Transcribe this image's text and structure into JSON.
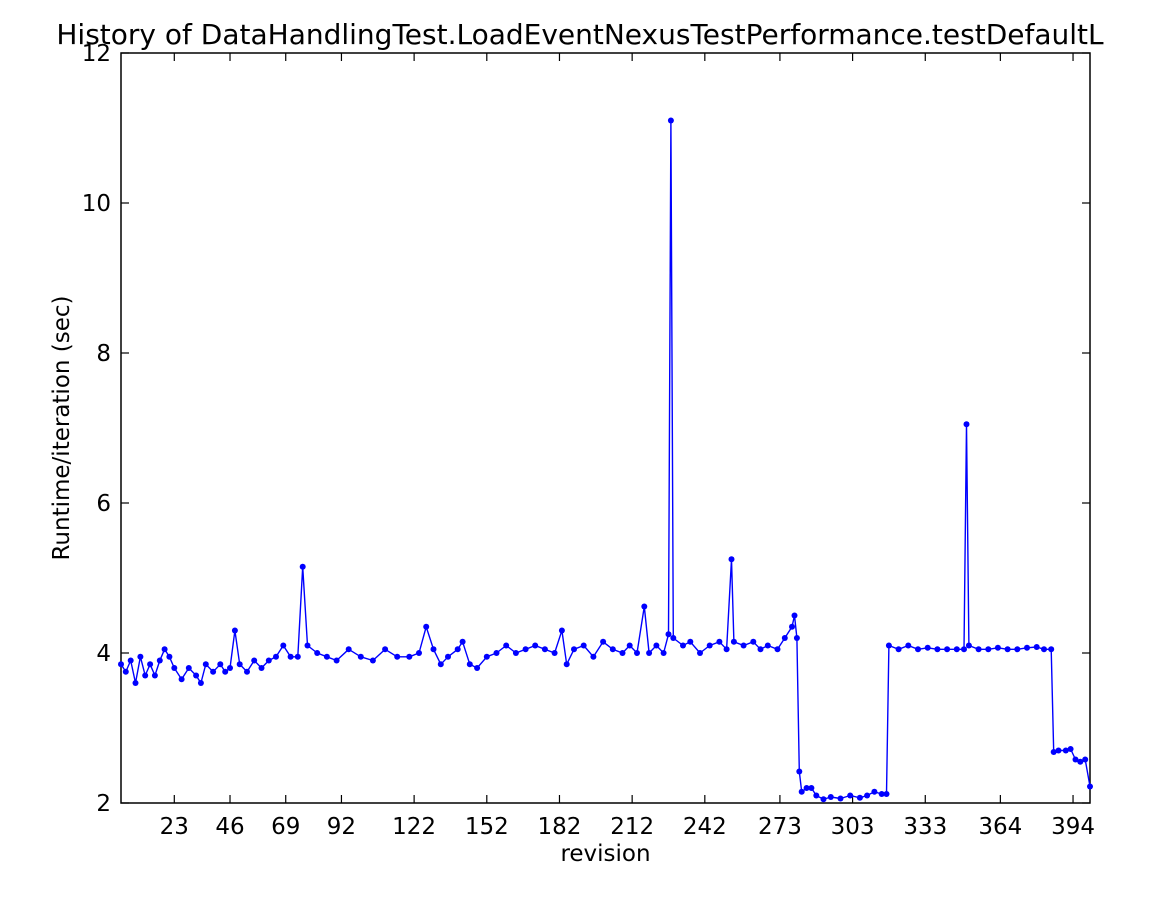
{
  "chart_data": {
    "type": "line",
    "title": "History of DataHandlingTest.LoadEventNexusTestPerformance.testDefaultL",
    "xlabel": "revision",
    "ylabel": "Runtime/iteration (sec)",
    "xlim": [
      1,
      401
    ],
    "ylim": [
      2,
      12
    ],
    "xticks": [
      23,
      46,
      69,
      92,
      122,
      152,
      182,
      212,
      242,
      273,
      303,
      333,
      364,
      394
    ],
    "xtick_labels": [
      "23",
      "46",
      "69",
      "92",
      "122",
      "152",
      "182",
      "212",
      "242",
      "273",
      "303",
      "333",
      "364",
      "394"
    ],
    "yticks": [
      2,
      4,
      6,
      8,
      10,
      12
    ],
    "ytick_labels": [
      "2",
      "4",
      "6",
      "8",
      "10",
      "12"
    ],
    "grid": false,
    "colors": {
      "series": "#0000ff",
      "axes": "#000000",
      "background": "#ffffff"
    },
    "series": [
      {
        "marker": "circle",
        "keypoints": [
          [
            1,
            3.85
          ],
          [
            3,
            3.75
          ],
          [
            5,
            3.9
          ],
          [
            7,
            3.6
          ],
          [
            9,
            3.95
          ],
          [
            11,
            3.7
          ],
          [
            13,
            3.85
          ],
          [
            15,
            3.7
          ],
          [
            17,
            3.9
          ],
          [
            19,
            4.05
          ],
          [
            21,
            3.95
          ],
          [
            23,
            3.8
          ],
          [
            26,
            3.65
          ],
          [
            29,
            3.8
          ],
          [
            32,
            3.7
          ],
          [
            34,
            3.6
          ],
          [
            36,
            3.85
          ],
          [
            39,
            3.75
          ],
          [
            42,
            3.85
          ],
          [
            44,
            3.75
          ],
          [
            46,
            3.8
          ],
          [
            48,
            4.3
          ],
          [
            50,
            3.85
          ],
          [
            53,
            3.75
          ],
          [
            56,
            3.9
          ],
          [
            59,
            3.8
          ],
          [
            62,
            3.9
          ],
          [
            65,
            3.95
          ],
          [
            68,
            4.1
          ],
          [
            71,
            3.95
          ],
          [
            74,
            3.95
          ],
          [
            76,
            5.15
          ],
          [
            78,
            4.1
          ],
          [
            82,
            4.0
          ],
          [
            86,
            3.95
          ],
          [
            90,
            3.9
          ],
          [
            95,
            4.05
          ],
          [
            100,
            3.95
          ],
          [
            105,
            3.9
          ],
          [
            110,
            4.05
          ],
          [
            115,
            3.95
          ],
          [
            120,
            3.95
          ],
          [
            124,
            4.0
          ],
          [
            127,
            4.35
          ],
          [
            130,
            4.05
          ],
          [
            133,
            3.85
          ],
          [
            136,
            3.95
          ],
          [
            140,
            4.05
          ],
          [
            142,
            4.15
          ],
          [
            145,
            3.85
          ],
          [
            148,
            3.8
          ],
          [
            152,
            3.95
          ],
          [
            156,
            4.0
          ],
          [
            160,
            4.1
          ],
          [
            164,
            4.0
          ],
          [
            168,
            4.05
          ],
          [
            172,
            4.1
          ],
          [
            176,
            4.05
          ],
          [
            180,
            4.0
          ],
          [
            183,
            4.3
          ],
          [
            185,
            3.85
          ],
          [
            188,
            4.05
          ],
          [
            192,
            4.1
          ],
          [
            196,
            3.95
          ],
          [
            200,
            4.15
          ],
          [
            204,
            4.05
          ],
          [
            208,
            4.0
          ],
          [
            211,
            4.1
          ],
          [
            214,
            4.0
          ],
          [
            217,
            4.62
          ],
          [
            219,
            4.0
          ],
          [
            222,
            4.1
          ],
          [
            225,
            4.0
          ],
          [
            227,
            4.25
          ],
          [
            228,
            11.1
          ],
          [
            229,
            4.2
          ],
          [
            233,
            4.1
          ],
          [
            236,
            4.15
          ],
          [
            240,
            4.0
          ],
          [
            244,
            4.1
          ],
          [
            248,
            4.15
          ],
          [
            251,
            4.05
          ],
          [
            253,
            5.25
          ],
          [
            254,
            4.15
          ],
          [
            258,
            4.1
          ],
          [
            262,
            4.15
          ],
          [
            265,
            4.05
          ],
          [
            268,
            4.1
          ],
          [
            272,
            4.05
          ],
          [
            275,
            4.2
          ],
          [
            278,
            4.35
          ],
          [
            279,
            4.5
          ],
          [
            280,
            4.2
          ],
          [
            281,
            2.42
          ],
          [
            282,
            2.15
          ],
          [
            284,
            2.2
          ],
          [
            286,
            2.2
          ],
          [
            288,
            2.1
          ],
          [
            291,
            2.05
          ],
          [
            294,
            2.08
          ],
          [
            298,
            2.06
          ],
          [
            302,
            2.1
          ],
          [
            306,
            2.07
          ],
          [
            309,
            2.1
          ],
          [
            312,
            2.15
          ],
          [
            315,
            2.12
          ],
          [
            317,
            2.12
          ],
          [
            318,
            4.1
          ],
          [
            322,
            4.05
          ],
          [
            326,
            4.1
          ],
          [
            330,
            4.05
          ],
          [
            334,
            4.07
          ],
          [
            338,
            4.05
          ],
          [
            342,
            4.05
          ],
          [
            346,
            4.05
          ],
          [
            349,
            4.05
          ],
          [
            350,
            7.05
          ],
          [
            351,
            4.1
          ],
          [
            355,
            4.05
          ],
          [
            359,
            4.05
          ],
          [
            363,
            4.07
          ],
          [
            367,
            4.05
          ],
          [
            371,
            4.05
          ],
          [
            375,
            4.07
          ],
          [
            379,
            4.08
          ],
          [
            382,
            4.05
          ],
          [
            385,
            4.05
          ],
          [
            386,
            2.68
          ],
          [
            388,
            2.7
          ],
          [
            391,
            2.7
          ],
          [
            393,
            2.72
          ],
          [
            395,
            2.58
          ],
          [
            397,
            2.55
          ],
          [
            399,
            2.58
          ],
          [
            401,
            2.22
          ]
        ]
      }
    ]
  }
}
